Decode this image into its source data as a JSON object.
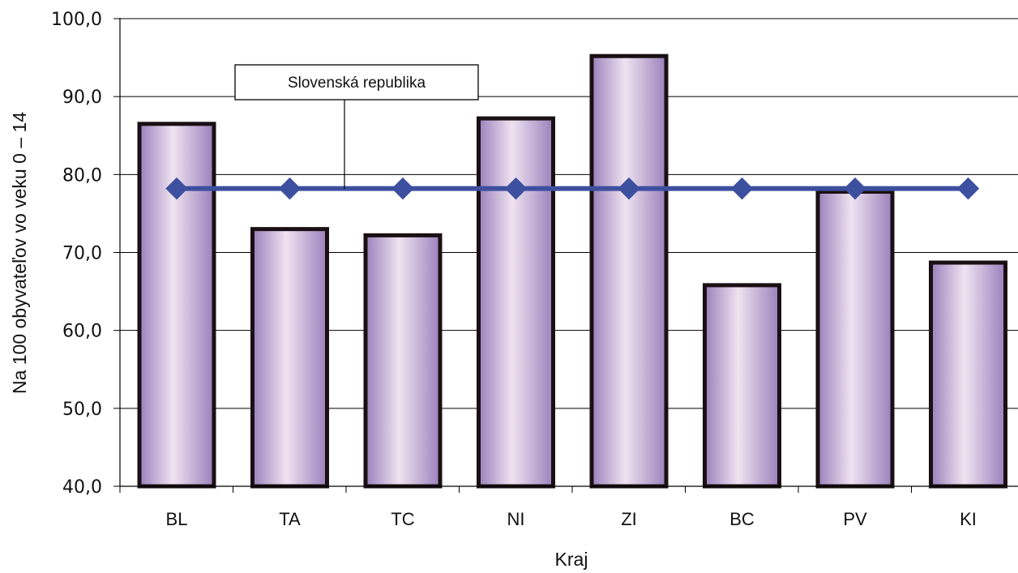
{
  "chart_data": {
    "type": "bar",
    "title": "",
    "xlabel": "Kraj",
    "ylabel": "Na 100 obyvateľov vo veku 0 – 14",
    "categories": [
      "BL",
      "TA",
      "TC",
      "NI",
      "ZI",
      "BC",
      "PV",
      "KI"
    ],
    "series": [
      {
        "type": "bar",
        "values": [
          86.5,
          73.0,
          72.2,
          87.2,
          95.2,
          65.8,
          77.8,
          68.7
        ]
      },
      {
        "name": "Slovenská republika",
        "type": "line",
        "values": [
          78.2,
          78.2,
          78.2,
          78.2,
          78.2,
          78.2,
          78.2,
          78.2
        ]
      }
    ],
    "ylim": [
      40,
      100
    ],
    "yticks": [
      "40,0",
      "50,0",
      "60,0",
      "70,0",
      "80,0",
      "90,0",
      "100,0"
    ],
    "grid": "horizontal",
    "legend": "callout label on line, upper left",
    "colors": {
      "bar_fill_light": "#efe3f0",
      "bar_fill_dark": "#9a80bc",
      "bar_stroke": "#1a1014",
      "line": "#3d4f9f",
      "marker": "#3d4f9f",
      "grid": "#000000"
    }
  }
}
